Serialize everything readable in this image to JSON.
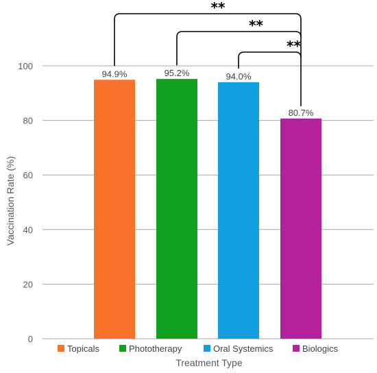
{
  "chart_data": {
    "type": "bar",
    "categories": [
      "Topicals",
      "Phototherapy",
      "Oral Systemics",
      "Biologics"
    ],
    "values": [
      94.9,
      95.2,
      94.0,
      80.7
    ],
    "data_labels": [
      "94.9%",
      "95.2%",
      "94.0%",
      "80.7%"
    ],
    "colors": [
      "#F9722A",
      "#12A020",
      "#139FDF",
      "#B4229B"
    ],
    "xlabel": "Treatment Type",
    "ylabel": "Vaccination Rate (%)",
    "ylim": [
      0,
      100
    ],
    "yticks": [
      0,
      20,
      40,
      60,
      80,
      100
    ],
    "grid": true,
    "legend": {
      "placement": "bottom",
      "entries": [
        "Topicals",
        "Phototherapy",
        "Oral Systemics",
        "Biologics"
      ]
    },
    "significance": [
      {
        "from": "Topicals",
        "to": "Biologics",
        "label": "**"
      },
      {
        "from": "Phototherapy",
        "to": "Biologics",
        "label": "**"
      },
      {
        "from": "Oral Systemics",
        "to": "Biologics",
        "label": "**"
      }
    ]
  }
}
